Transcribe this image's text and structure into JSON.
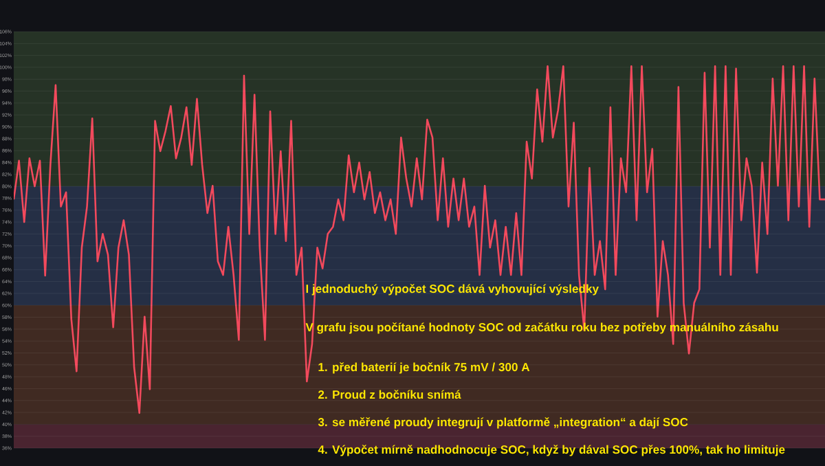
{
  "chart_data": {
    "type": "line",
    "categories": [
      null,
      null,
      null,
      null,
      null,
      null,
      null,
      null,
      null,
      null,
      null,
      null,
      null,
      null,
      null,
      null,
      null,
      null,
      null,
      null,
      null,
      null,
      null,
      null,
      null,
      null,
      null,
      null,
      null,
      null,
      null,
      null,
      null,
      null,
      null,
      null,
      null,
      null,
      null,
      null,
      null,
      null,
      null,
      null,
      null,
      null,
      null,
      null,
      null,
      null,
      null,
      null,
      null,
      null,
      null,
      null,
      null,
      null,
      null,
      null,
      null,
      null,
      null,
      null,
      null,
      null,
      null,
      null,
      null,
      null,
      null,
      null,
      null,
      null,
      null,
      null,
      null,
      null,
      null,
      null,
      null,
      null,
      null,
      null,
      null,
      null,
      null,
      null,
      null,
      null,
      null,
      null,
      null,
      null,
      null,
      null,
      null,
      null,
      null,
      null,
      null,
      null,
      null,
      null,
      null,
      null,
      null,
      null,
      null,
      null,
      null,
      null,
      null,
      null,
      null,
      null,
      null,
      null,
      null,
      null,
      null,
      null,
      null,
      null,
      null,
      null,
      null,
      null,
      null,
      null,
      null,
      null,
      null,
      null,
      null,
      null,
      null,
      null,
      null,
      null,
      null,
      null,
      null,
      null,
      null,
      null,
      null,
      null,
      null,
      null,
      null,
      null,
      null,
      null,
      null,
      null
    ],
    "series": [
      {
        "color": "#f2495c",
        "values": [
          77.8,
          84.3,
          74,
          84.7,
          80,
          84.3,
          65,
          83.6,
          97,
          76.6,
          79,
          57.7,
          48.9,
          69.7,
          76.6,
          91.4,
          67.4,
          72,
          68.5,
          56.3,
          69.7,
          74.3,
          68.5,
          49.6,
          41.9,
          58.1,
          45.9,
          91,
          85.9,
          89.3,
          93.5,
          84.7,
          88.2,
          93.3,
          83.6,
          94.7,
          83.6,
          75.5,
          80.1,
          67.4,
          65.1,
          73.2,
          65.1,
          54.2,
          98.6,
          72,
          95.4,
          69.7,
          54.2,
          92.6,
          72,
          85.9,
          70.8,
          91,
          65.1,
          69.7,
          47.2,
          53.5,
          69.7,
          66.2,
          72,
          73.2,
          77.8,
          74.3,
          85.2,
          79,
          84,
          77.8,
          82.4,
          75.5,
          79,
          74.3,
          77.8,
          72,
          88.2,
          81.3,
          76.6,
          84.7,
          77.8,
          91.2,
          88.2,
          74.3,
          84.7,
          73.2,
          81.3,
          74.3,
          81.3,
          73.2,
          76.6,
          65.1,
          80.1,
          69.7,
          74.3,
          65.1,
          73.2,
          65.1,
          75.5,
          65.1,
          87.5,
          81.3,
          96.3,
          87.5,
          100.2,
          88.2,
          92.8,
          100.2,
          76.6,
          90.7,
          65.1,
          55.8,
          83.1,
          65.1,
          70.8,
          62.7,
          93.3,
          65.1,
          84.7,
          79,
          100.2,
          74.3,
          100.2,
          79,
          86.3,
          58.1,
          70.8,
          65.1,
          53.5,
          96.7,
          60.4,
          51.9,
          60.4,
          62.7,
          99.1,
          69.7,
          100.2,
          65.1,
          100.2,
          65.1,
          99.8,
          74.3,
          84.7,
          80.1,
          65.5,
          84,
          72,
          98.1,
          80.1,
          100.2,
          74.3,
          100.2,
          76.6,
          100.2,
          73.2,
          98.1,
          77.8,
          77.8
        ]
      }
    ],
    "ylim": [
      36,
      106
    ],
    "yticks": [
      {
        "value": 36,
        "label": "36%"
      },
      {
        "value": 38,
        "label": "38%"
      },
      {
        "value": 40,
        "label": "40%"
      },
      {
        "value": 42,
        "label": "42%"
      },
      {
        "value": 44,
        "label": "44%"
      },
      {
        "value": 46,
        "label": "46%"
      },
      {
        "value": 48,
        "label": "48%"
      },
      {
        "value": 50,
        "label": "50%"
      },
      {
        "value": 52,
        "label": "52%"
      },
      {
        "value": 54,
        "label": "54%"
      },
      {
        "value": 56,
        "label": "56%"
      },
      {
        "value": 58,
        "label": "58%"
      },
      {
        "value": 60,
        "label": "60%"
      },
      {
        "value": 62,
        "label": "62%"
      },
      {
        "value": 64,
        "label": "64%"
      },
      {
        "value": 66,
        "label": "66%"
      },
      {
        "value": 68,
        "label": "68%"
      },
      {
        "value": 70,
        "label": "70%"
      },
      {
        "value": 72,
        "label": "72%"
      },
      {
        "value": 74,
        "label": "74%"
      },
      {
        "value": 76,
        "label": "76%"
      },
      {
        "value": 78,
        "label": "78%"
      },
      {
        "value": 80,
        "label": "80%"
      },
      {
        "value": 82,
        "label": "82%"
      },
      {
        "value": 84,
        "label": "84%"
      },
      {
        "value": 86,
        "label": "86%"
      },
      {
        "value": 88,
        "label": "88%"
      },
      {
        "value": 90,
        "label": "90%"
      },
      {
        "value": 92,
        "label": "92%"
      },
      {
        "value": 94,
        "label": "94%"
      },
      {
        "value": 96,
        "label": "96%"
      },
      {
        "value": 98,
        "label": "98%"
      },
      {
        "value": 100,
        "label": "100%"
      },
      {
        "value": 102,
        "label": "102%"
      },
      {
        "value": 104,
        "label": "104%"
      },
      {
        "value": 106,
        "label": "106%"
      }
    ],
    "bands": [
      {
        "axis": "y",
        "from": 80,
        "to": 106,
        "color": "#263326"
      },
      {
        "axis": "y",
        "from": 60,
        "to": 80,
        "color": "#252f45"
      },
      {
        "axis": "y",
        "from": 40,
        "to": 60,
        "color": "#402a22"
      },
      {
        "axis": "y",
        "from": 36,
        "to": 40,
        "color": "#4a2430"
      }
    ],
    "grid": true,
    "legend": false,
    "marker": "none",
    "line_style": "solid",
    "annotations": [
      "I jednoduchý výpočet SOC dává vyhovující výsledky",
      "V grafu jsou počítané hodnoty SOC od začátku roku bez potřeby manuálního zásahu",
      "1. před baterií je bočník 75 mV / 300 A",
      "2. Proud z bočníku snímá",
      "3. se měřené proudy integrují v platformě „integration“ a dají SOC",
      "4. Výpočet mírně nadhodnocuje SOC, když by dával SOC přes 100%, tak ho limituje"
    ]
  }
}
